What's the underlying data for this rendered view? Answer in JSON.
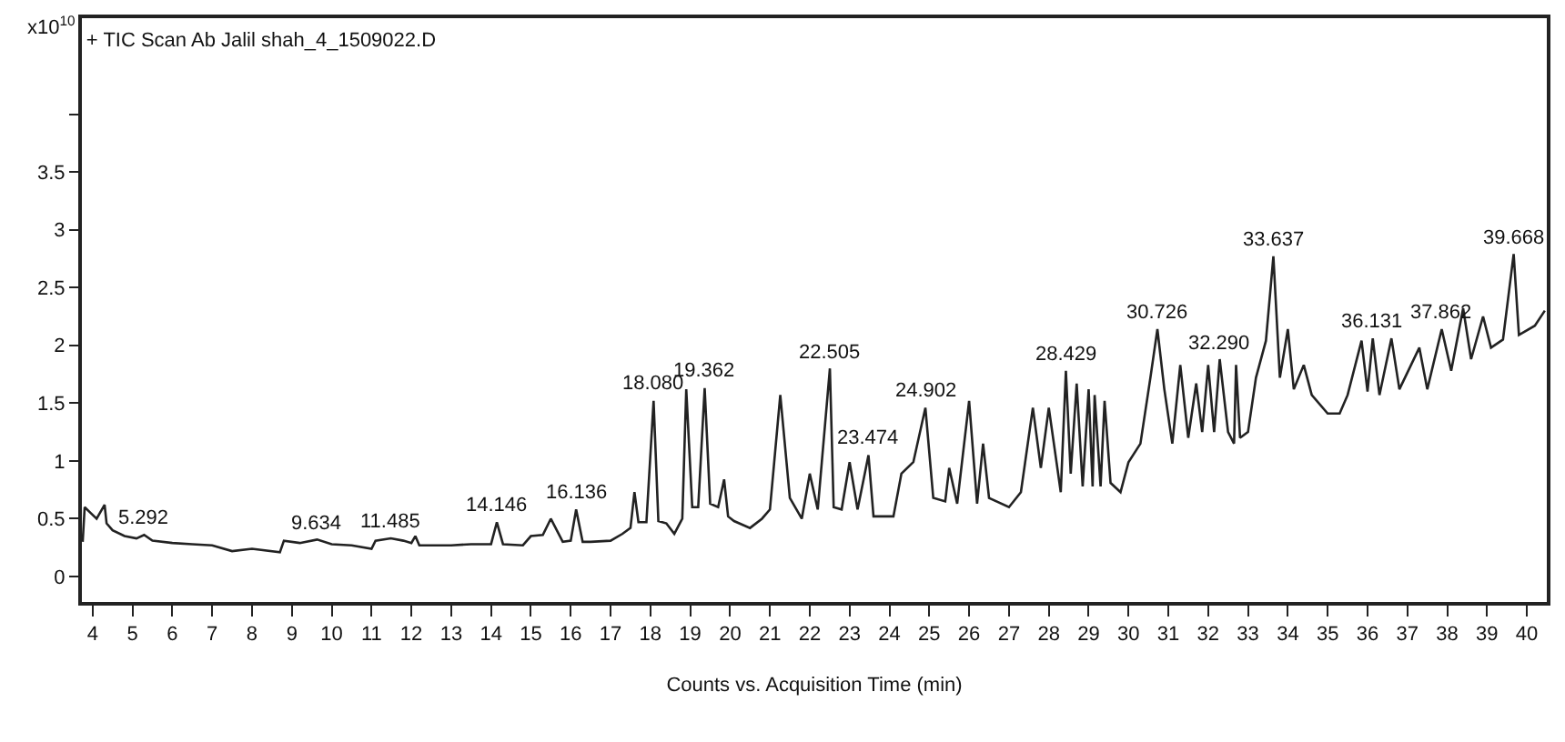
{
  "chart_data": {
    "type": "line",
    "title": "+ TIC Scan Ab Jalil shah_4_1509022.D",
    "xlabel": "Counts vs. Acquisition Time (min)",
    "ylabel": "x10$^{10}$",
    "x": [
      3.75,
      3.8,
      3.95,
      4.1,
      4.3,
      4.35,
      4.5,
      4.8,
      5.1,
      5.292,
      5.5,
      6,
      6.5,
      7,
      7.5,
      8,
      8.7,
      8.8,
      9.2,
      9.634,
      10,
      10.5,
      11,
      11.1,
      11.485,
      11.8,
      12,
      12.1,
      12.2,
      13,
      13.5,
      14,
      14.146,
      14.3,
      14.8,
      15,
      15.3,
      15.5,
      15.8,
      16,
      16.136,
      16.3,
      16.5,
      17,
      17.3,
      17.5,
      17.6,
      17.7,
      17.9,
      18.08,
      18.2,
      18.4,
      18.6,
      18.8,
      18.9,
      19.05,
      19.2,
      19.362,
      19.5,
      19.7,
      19.85,
      19.95,
      20.1,
      20.5,
      20.8,
      21,
      21.26,
      21.5,
      21.8,
      22,
      22.2,
      22.505,
      22.6,
      22.8,
      23,
      23.2,
      23.474,
      23.6,
      24.1,
      24.3,
      24.6,
      24.902,
      25.1,
      25.4,
      25.5,
      25.7,
      26,
      26.2,
      26.35,
      26.5,
      27,
      27.3,
      27.6,
      27.8,
      28,
      28.3,
      28.429,
      28.55,
      28.7,
      28.85,
      29,
      29.1,
      29.15,
      29.3,
      29.4,
      29.55,
      29.8,
      30,
      30.3,
      30.55,
      30.726,
      30.9,
      31.1,
      31.3,
      31.5,
      31.7,
      31.85,
      32,
      32.15,
      32.29,
      32.5,
      32.65,
      32.7,
      32.8,
      33,
      33.2,
      33.45,
      33.637,
      33.8,
      34,
      34.15,
      34.4,
      34.6,
      35,
      35.3,
      35.5,
      35.85,
      36,
      36.131,
      36.3,
      36.6,
      36.8,
      37.3,
      37.5,
      37.862,
      38.1,
      38.4,
      38.6,
      38.9,
      39.1,
      39.4,
      39.668,
      39.8,
      40.2,
      40.45
    ],
    "series": [
      {
        "color": "#222222",
        "values": [
          0.3,
          0.6,
          0.55,
          0.5,
          0.62,
          0.46,
          0.4,
          0.35,
          0.33,
          0.36,
          0.31,
          0.29,
          0.28,
          0.27,
          0.22,
          0.24,
          0.21,
          0.31,
          0.29,
          0.32,
          0.28,
          0.27,
          0.24,
          0.31,
          0.33,
          0.31,
          0.29,
          0.35,
          0.27,
          0.27,
          0.28,
          0.28,
          0.47,
          0.28,
          0.27,
          0.35,
          0.36,
          0.5,
          0.3,
          0.31,
          0.58,
          0.3,
          0.3,
          0.31,
          0.37,
          0.42,
          0.73,
          0.47,
          0.47,
          1.52,
          0.48,
          0.46,
          0.37,
          0.5,
          1.62,
          0.6,
          0.6,
          1.63,
          0.63,
          0.6,
          0.84,
          0.52,
          0.48,
          0.42,
          0.5,
          0.58,
          1.57,
          0.68,
          0.5,
          0.89,
          0.58,
          1.8,
          0.6,
          0.58,
          0.99,
          0.58,
          1.05,
          0.52,
          0.52,
          0.89,
          0.99,
          1.46,
          0.68,
          0.65,
          0.94,
          0.63,
          1.52,
          0.63,
          1.15,
          0.68,
          0.6,
          0.73,
          1.46,
          0.94,
          1.46,
          0.73,
          1.78,
          0.89,
          1.67,
          0.78,
          1.62,
          0.78,
          1.57,
          0.78,
          1.52,
          0.81,
          0.73,
          0.99,
          1.15,
          1.72,
          2.14,
          1.62,
          1.15,
          1.83,
          1.2,
          1.67,
          1.25,
          1.83,
          1.25,
          1.88,
          1.25,
          1.15,
          1.83,
          1.2,
          1.25,
          1.72,
          2.04,
          2.77,
          1.72,
          2.14,
          1.62,
          1.83,
          1.57,
          1.41,
          1.41,
          1.57,
          2.04,
          1.6,
          2.06,
          1.57,
          2.06,
          1.62,
          1.98,
          1.62,
          2.14,
          1.78,
          2.32,
          1.88,
          2.25,
          1.98,
          2.05,
          2.79,
          2.09,
          2.17,
          2.3
        ]
      }
    ],
    "xlim": [
      3.73,
      40.5
    ],
    "xticks": [
      4,
      5,
      6,
      7,
      8,
      9,
      10,
      11,
      12,
      13,
      14,
      15,
      16,
      17,
      18,
      19,
      20,
      21,
      22,
      23,
      24,
      25,
      26,
      27,
      28,
      29,
      30,
      31,
      32,
      33,
      34,
      35,
      36,
      37,
      38,
      39,
      40
    ],
    "ylim": [
      -0.22,
      4.83
    ],
    "yticks": [
      0,
      0.5,
      1,
      1.5,
      2,
      2.5,
      3,
      3.5,
      {
        "value": 4,
        "label": null
      }
    ],
    "grid": false,
    "marker": "none",
    "line_style": "solid",
    "annotations": [
      {
        "text": "5.292",
        "x": 5.292,
        "y": 0.36
      },
      {
        "text": "9.634",
        "x": 9.634,
        "y": 0.32
      },
      {
        "text": "11.485",
        "x": 11.485,
        "y": 0.33
      },
      {
        "text": "14.146",
        "x": 14.146,
        "y": 0.47
      },
      {
        "text": "16.136",
        "x": 16.136,
        "y": 0.58
      },
      {
        "text": "18.080",
        "x": 18.08,
        "y": 1.52
      },
      {
        "text": "19.362",
        "x": 19.362,
        "y": 1.63
      },
      {
        "text": "22.505",
        "x": 22.505,
        "y": 1.8
      },
      {
        "text": "23.474",
        "x": 23.474,
        "y": 1.05
      },
      {
        "text": "24.902",
        "x": 24.902,
        "y": 1.46
      },
      {
        "text": "28.429",
        "x": 28.429,
        "y": 1.78
      },
      {
        "text": "30.726",
        "x": 30.726,
        "y": 2.14
      },
      {
        "text": "32.290",
        "x": 32.29,
        "y": 1.88
      },
      {
        "text": "33.637",
        "x": 33.637,
        "y": 2.77
      },
      {
        "text": "36.131",
        "x": 36.131,
        "y": 2.06
      },
      {
        "text": "37.862",
        "x": 37.862,
        "y": 2.14
      },
      {
        "text": "39.668",
        "x": 39.668,
        "y": 2.79
      }
    ]
  }
}
